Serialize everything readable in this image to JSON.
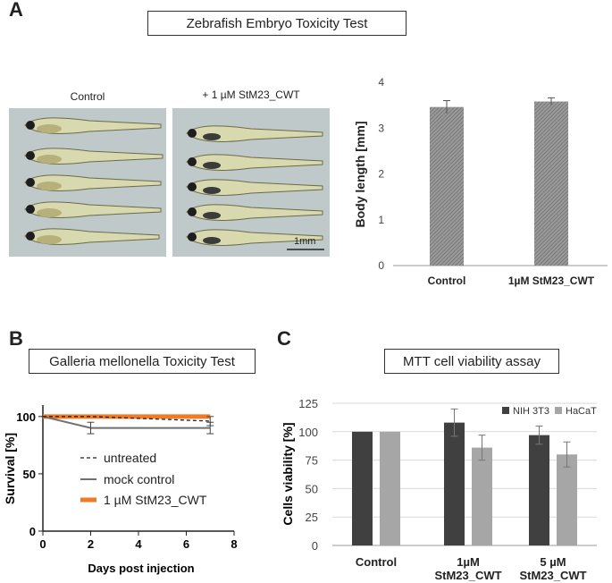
{
  "panel_a": {
    "letter": "A",
    "title": "Zebrafish Embryo Toxicity Test",
    "photo_left_caption": "Control",
    "photo_right_caption": "+ 1 µM StM23_CWT",
    "scale_bar": "1mm"
  },
  "panel_b": {
    "letter": "B",
    "title": "Galleria mellonella Toxicity Test"
  },
  "panel_c": {
    "letter": "C",
    "title": "MTT cell viability assay"
  },
  "colors": {
    "bar_a": "#8c8c8c",
    "nih3t3": "#404040",
    "hacat": "#a6a6a6",
    "treated_line": "#f07a25",
    "mock_line": "#707070",
    "untreated_line": "#222222"
  },
  "chart_data": [
    {
      "id": "body-length",
      "type": "bar",
      "categories": [
        "Control",
        "1µM StM23_CWT"
      ],
      "values": [
        3.46,
        3.58
      ],
      "errors": [
        0.14,
        0.08
      ],
      "ylabel": "Body length [mm]",
      "ylim": [
        0,
        4
      ],
      "yticks": [
        "0",
        "1",
        "2",
        "3",
        "4"
      ],
      "pattern": "hatched"
    },
    {
      "id": "survival",
      "type": "line",
      "xlabel": "Days post injection",
      "ylabel": "Survival [%]",
      "xlim": [
        0,
        8
      ],
      "ylim": [
        0,
        110
      ],
      "xticks": [
        "0",
        "2",
        "4",
        "6",
        "8"
      ],
      "yticks": [
        "0",
        "50",
        "100"
      ],
      "legend_position": "inside-lower",
      "series": [
        {
          "name": "untreated",
          "style": "dashed",
          "x": [
            0,
            2,
            7
          ],
          "y": [
            100,
            100,
            96
          ],
          "err": [
            0,
            0,
            4
          ]
        },
        {
          "name": "mock control",
          "style": "solid",
          "x": [
            0,
            2,
            7
          ],
          "y": [
            100,
            90,
            90
          ],
          "err": [
            0,
            5,
            5
          ]
        },
        {
          "name": "1 µM StM23_CWT",
          "style": "thick",
          "x": [
            0,
            2,
            7
          ],
          "y": [
            100,
            100,
            100
          ],
          "err": [
            0,
            0,
            0
          ]
        }
      ]
    },
    {
      "id": "mtt",
      "type": "bar",
      "categories": [
        "Control",
        "1µM\nStM23_CWT",
        "5 µM\nStM23_CWT"
      ],
      "ylabel": "Cells viability [%]",
      "ylim": [
        0,
        125
      ],
      "yticks": [
        "0",
        "25",
        "50",
        "75",
        "100",
        "125"
      ],
      "grid": true,
      "legend_position": "top-right",
      "series": [
        {
          "name": "NIH 3T3",
          "values": [
            100,
            108,
            97
          ],
          "errors": [
            0,
            12,
            8
          ]
        },
        {
          "name": "HaCaT",
          "values": [
            100,
            86,
            80
          ],
          "errors": [
            0,
            11,
            11
          ]
        }
      ]
    }
  ]
}
